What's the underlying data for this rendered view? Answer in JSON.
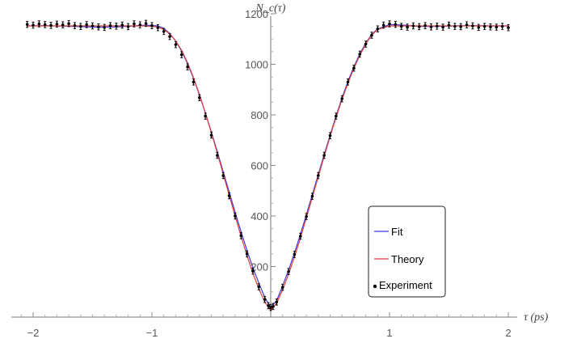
{
  "chart_data": {
    "type": "scatter",
    "title": "",
    "xlabel": "τ (ps)",
    "ylabel": "N_c(τ)",
    "xlim": [
      -2.2,
      2.4
    ],
    "ylim": [
      0,
      1200
    ],
    "xticks": [
      -2,
      -1,
      1,
      2
    ],
    "yticks": [
      200,
      400,
      600,
      800,
      1000,
      1200
    ],
    "legend_placement": "lower-right",
    "series": [
      {
        "name": "Fit",
        "kind": "line",
        "color": "#3b3bdc",
        "x": [
          -2.05,
          -1.9,
          -1.75,
          -1.6,
          -1.45,
          -1.3,
          -1.15,
          -1.05,
          -0.95,
          -0.9,
          -0.85,
          -0.8,
          -0.75,
          -0.7,
          -0.65,
          -0.6,
          -0.55,
          -0.5,
          -0.45,
          -0.4,
          -0.35,
          -0.3,
          -0.25,
          -0.2,
          -0.15,
          -0.1,
          -0.05,
          0,
          0.05,
          0.1,
          0.15,
          0.2,
          0.25,
          0.3,
          0.35,
          0.4,
          0.45,
          0.5,
          0.55,
          0.6,
          0.65,
          0.7,
          0.75,
          0.8,
          0.85,
          0.9,
          1.0,
          1.1,
          1.25,
          1.4,
          1.55,
          1.7,
          1.85,
          2.0
        ],
        "y": [
          1152,
          1153,
          1151,
          1149,
          1147,
          1148,
          1152,
          1155,
          1152,
          1142,
          1122,
          1092,
          1052,
          1002,
          945,
          878,
          808,
          733,
          655,
          575,
          495,
          415,
          338,
          264,
          196,
          135,
          78,
          38,
          66,
          124,
          186,
          254,
          328,
          405,
          484,
          563,
          643,
          720,
          796,
          867,
          933,
          990,
          1042,
          1084,
          1118,
          1140,
          1157,
          1156,
          1150,
          1150,
          1152,
          1153,
          1152,
          1152
        ]
      },
      {
        "name": "Theory",
        "kind": "line",
        "color": "#e23b3b",
        "x": [
          -2.05,
          -1.9,
          -1.75,
          -1.6,
          -1.45,
          -1.3,
          -1.15,
          -1.05,
          -0.95,
          -0.9,
          -0.85,
          -0.8,
          -0.75,
          -0.7,
          -0.65,
          -0.6,
          -0.55,
          -0.5,
          -0.45,
          -0.4,
          -0.35,
          -0.3,
          -0.25,
          -0.2,
          -0.15,
          -0.1,
          -0.05,
          0,
          0.05,
          0.1,
          0.15,
          0.2,
          0.25,
          0.3,
          0.35,
          0.4,
          0.45,
          0.5,
          0.55,
          0.6,
          0.65,
          0.7,
          0.75,
          0.8,
          0.85,
          0.9,
          1.0,
          1.1,
          1.25,
          1.4,
          1.55,
          1.7,
          1.85,
          2.0
        ],
        "y": [
          1152,
          1152,
          1152,
          1152,
          1152,
          1152,
          1152,
          1152,
          1148,
          1138,
          1120,
          1093,
          1055,
          1006,
          948,
          881,
          808,
          730,
          649,
          566,
          483,
          400,
          320,
          244,
          174,
          112,
          60,
          28,
          55,
          108,
          170,
          238,
          314,
          393,
          474,
          555,
          636,
          715,
          790,
          861,
          926,
          984,
          1036,
          1080,
          1116,
          1138,
          1152,
          1152,
          1152,
          1152,
          1152,
          1152,
          1152,
          1152
        ]
      },
      {
        "name": "Experiment",
        "kind": "scatter",
        "color": "#000000",
        "error": 12,
        "x": [
          -2.05,
          -2.0,
          -1.95,
          -1.9,
          -1.85,
          -1.8,
          -1.75,
          -1.7,
          -1.65,
          -1.6,
          -1.55,
          -1.5,
          -1.45,
          -1.4,
          -1.35,
          -1.3,
          -1.25,
          -1.2,
          -1.15,
          -1.1,
          -1.05,
          -1.0,
          -0.95,
          -0.9,
          -0.85,
          -0.8,
          -0.75,
          -0.7,
          -0.65,
          -0.6,
          -0.55,
          -0.5,
          -0.45,
          -0.4,
          -0.35,
          -0.3,
          -0.25,
          -0.2,
          -0.15,
          -0.1,
          -0.05,
          -0.02,
          0,
          0.02,
          0.05,
          0.1,
          0.15,
          0.2,
          0.25,
          0.3,
          0.35,
          0.4,
          0.45,
          0.5,
          0.55,
          0.6,
          0.65,
          0.7,
          0.75,
          0.8,
          0.85,
          0.9,
          0.95,
          1.0,
          1.05,
          1.1,
          1.15,
          1.2,
          1.25,
          1.3,
          1.35,
          1.4,
          1.45,
          1.5,
          1.55,
          1.6,
          1.65,
          1.7,
          1.75,
          1.8,
          1.85,
          1.9,
          1.95,
          2.0
        ],
        "y": [
          1158,
          1155,
          1160,
          1157,
          1154,
          1159,
          1156,
          1161,
          1153,
          1150,
          1157,
          1152,
          1148,
          1146,
          1153,
          1151,
          1155,
          1149,
          1160,
          1156,
          1162,
          1153,
          1145,
          1130,
          1110,
          1078,
          1038,
          990,
          930,
          868,
          795,
          720,
          640,
          560,
          480,
          400,
          322,
          250,
          182,
          120,
          70,
          45,
          38,
          42,
          60,
          118,
          180,
          248,
          320,
          398,
          478,
          560,
          640,
          718,
          795,
          864,
          930,
          985,
          1040,
          1080,
          1115,
          1140,
          1155,
          1160,
          1158,
          1150,
          1147,
          1152,
          1149,
          1153,
          1148,
          1151,
          1147,
          1155,
          1150,
          1149,
          1156,
          1152,
          1146,
          1150,
          1148,
          1147,
          1150,
          1145
        ]
      }
    ]
  }
}
